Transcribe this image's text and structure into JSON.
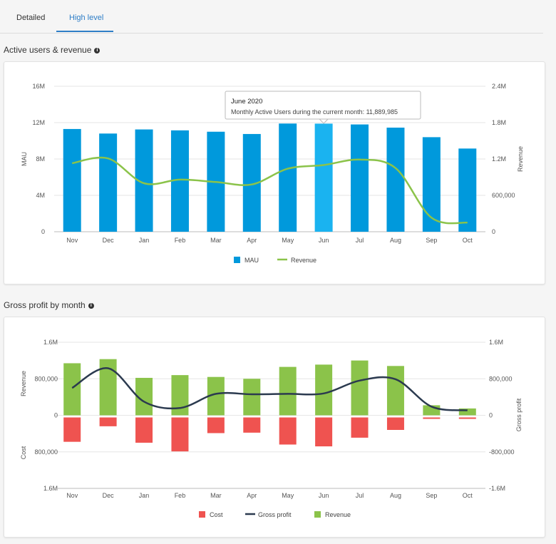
{
  "tabs": [
    {
      "label": "Detailed"
    },
    {
      "label": "High level",
      "active": true
    }
  ],
  "sections": {
    "active_users": {
      "title": "Active users & revenue",
      "info_icon": "info-icon"
    },
    "gross_profit": {
      "title": "Gross profit by month",
      "info_icon": "info-icon"
    }
  },
  "colors": {
    "mau": "#0099dc",
    "mau_highlight": "#1ab3f0",
    "revenue_line": "#8bc34a",
    "revenue_bar": "#8bc34a",
    "cost": "#ef5350",
    "gross_profit": "#2b3a4f",
    "accent": "#2e7ec7"
  },
  "chart_data": [
    {
      "type": "bar",
      "title": "Active users & revenue",
      "categories": [
        "Nov",
        "Dec",
        "Jan",
        "Feb",
        "Mar",
        "Apr",
        "May",
        "Jun",
        "Jul",
        "Aug",
        "Sep",
        "Oct"
      ],
      "ylabel": "MAU",
      "y2label": "Revenue",
      "ylim": [
        0,
        16000000
      ],
      "y2lim": [
        0,
        2400000
      ],
      "y_ticks": [
        "0",
        "4M",
        "8M",
        "12M",
        "16M"
      ],
      "y2_ticks": [
        "0",
        "600,000",
        "1.2M",
        "1.8M",
        "2.4M"
      ],
      "series": [
        {
          "name": "MAU",
          "type": "bar",
          "values": [
            11300000,
            10800000,
            11250000,
            11150000,
            11000000,
            10750000,
            11900000,
            11889985,
            11800000,
            11450000,
            10400000,
            9150000
          ]
        },
        {
          "name": "Revenue",
          "type": "line",
          "axis": "right",
          "values": [
            1130000,
            1210000,
            800000,
            860000,
            820000,
            780000,
            1040000,
            1100000,
            1190000,
            1050000,
            230000,
            150000
          ]
        }
      ],
      "tooltip": {
        "title": "June 2020",
        "text": "Monthly Active Users during the current month: 11,889,985",
        "category_index": 7
      },
      "legend": [
        "MAU",
        "Revenue"
      ]
    },
    {
      "type": "bar",
      "title": "Gross profit by month",
      "categories": [
        "Nov",
        "Dec",
        "Jan",
        "Feb",
        "Mar",
        "Apr",
        "May",
        "Jun",
        "Jul",
        "Aug",
        "Sep",
        "Oct"
      ],
      "ylabel_top": "Revenue",
      "ylabel_bottom": "Cost",
      "y2label": "Gross profit",
      "ylim": [
        -1600000,
        1600000
      ],
      "y_ticks": [
        "1.6M",
        "800,000",
        "0",
        "800,000",
        "1.6M"
      ],
      "y2_ticks": [
        "1.6M",
        "800,000",
        "0",
        "-800,000",
        "-1.6M"
      ],
      "series": [
        {
          "name": "Cost",
          "type": "bar",
          "values": [
            -580000,
            -240000,
            -600000,
            -790000,
            -390000,
            -380000,
            -640000,
            -680000,
            -490000,
            -320000,
            -40000,
            -40000
          ]
        },
        {
          "name": "Gross profit",
          "type": "line",
          "values": [
            600000,
            1030000,
            300000,
            160000,
            470000,
            460000,
            470000,
            480000,
            760000,
            790000,
            190000,
            110000
          ]
        },
        {
          "name": "Revenue",
          "type": "bar",
          "values": [
            1140000,
            1230000,
            820000,
            880000,
            840000,
            800000,
            1060000,
            1110000,
            1200000,
            1080000,
            220000,
            150000
          ]
        }
      ],
      "legend": [
        "Cost",
        "Gross profit",
        "Revenue"
      ]
    }
  ]
}
